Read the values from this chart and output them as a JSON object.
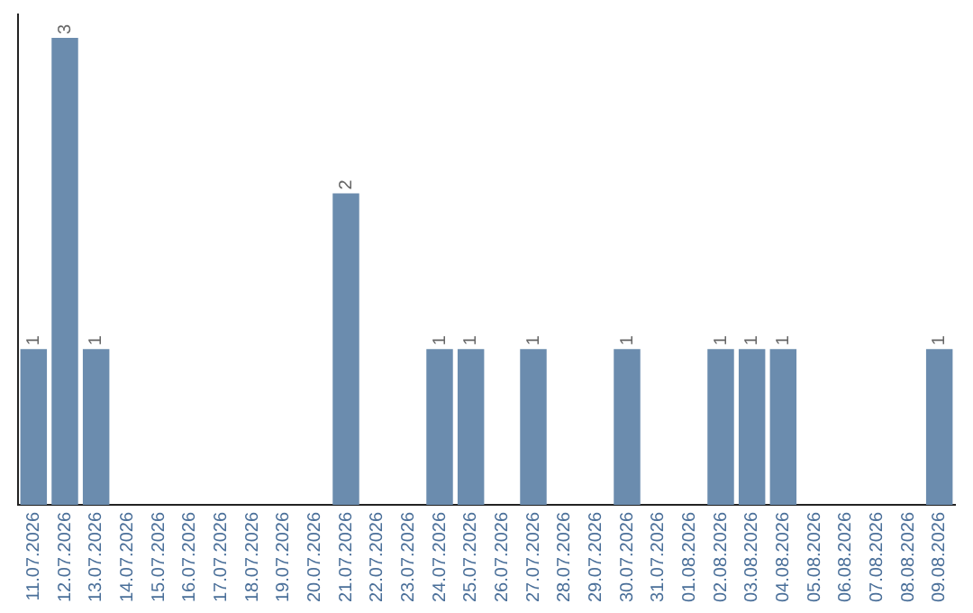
{
  "chart_data": {
    "type": "bar",
    "categories": [
      "11.07.2026",
      "12.07.2026",
      "13.07.2026",
      "14.07.2026",
      "15.07.2026",
      "16.07.2026",
      "17.07.2026",
      "18.07.2026",
      "19.07.2026",
      "20.07.2026",
      "21.07.2026",
      "22.07.2026",
      "23.07.2026",
      "24.07.2026",
      "25.07.2026",
      "26.07.2026",
      "27.07.2026",
      "28.07.2026",
      "29.07.2026",
      "30.07.2026",
      "31.07.2026",
      "01.08.2026",
      "02.08.2026",
      "03.08.2026",
      "04.08.2026",
      "05.08.2026",
      "06.08.2026",
      "07.08.2026",
      "08.08.2026",
      "09.08.2026"
    ],
    "values": [
      1,
      3,
      1,
      0,
      0,
      0,
      0,
      0,
      0,
      0,
      2,
      0,
      0,
      1,
      1,
      0,
      1,
      0,
      0,
      1,
      0,
      0,
      1,
      1,
      1,
      0,
      0,
      0,
      0,
      1
    ],
    "value_labels": [
      "1",
      "3",
      "1",
      null,
      null,
      null,
      null,
      null,
      null,
      null,
      "2",
      null,
      null,
      "1",
      "1",
      null,
      "1",
      null,
      null,
      "1",
      null,
      null,
      "1",
      "1",
      "1",
      null,
      null,
      null,
      null,
      "1"
    ],
    "color": "#6b8cae",
    "ylim": [
      0,
      3.15
    ],
    "grid": false,
    "legend": false,
    "tick_labels": "x"
  }
}
